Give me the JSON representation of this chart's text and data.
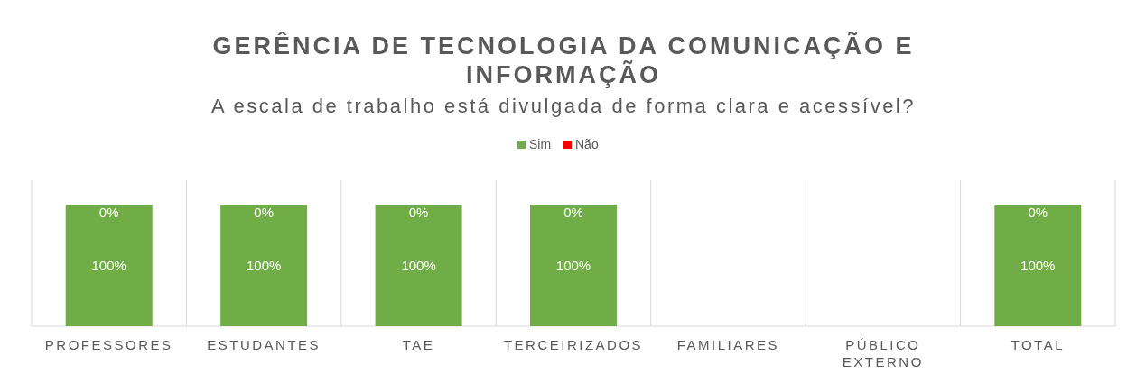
{
  "chart_data": {
    "type": "bar",
    "stacked": true,
    "title": "GERÊNCIA DE TECNOLOGIA DA COMUNICAÇÃO E INFORMAÇÃO",
    "subtitle": "A escala de trabalho está divulgada de forma clara e acessível?",
    "categories": [
      "PROFESSORES",
      "ESTUDANTES",
      "TAE",
      "TERCEIRIZADOS",
      "FAMILIARES",
      "PÚBLICO EXTERNO",
      "TOTAL"
    ],
    "series": [
      {
        "name": "Sim",
        "color": "#70ad47",
        "values": [
          100,
          100,
          100,
          100,
          0,
          0,
          100
        ],
        "value_labels": [
          "100%",
          "100%",
          "100%",
          "100%",
          null,
          null,
          "100%"
        ]
      },
      {
        "name": "Não",
        "color": "#ff0000",
        "values": [
          0,
          0,
          0,
          0,
          0,
          0,
          0
        ],
        "value_labels": [
          "0%",
          "0%",
          "0%",
          "0%",
          null,
          null,
          "0%"
        ]
      }
    ],
    "ylim": [
      0,
      120
    ],
    "grid": "x",
    "legend": "top"
  }
}
